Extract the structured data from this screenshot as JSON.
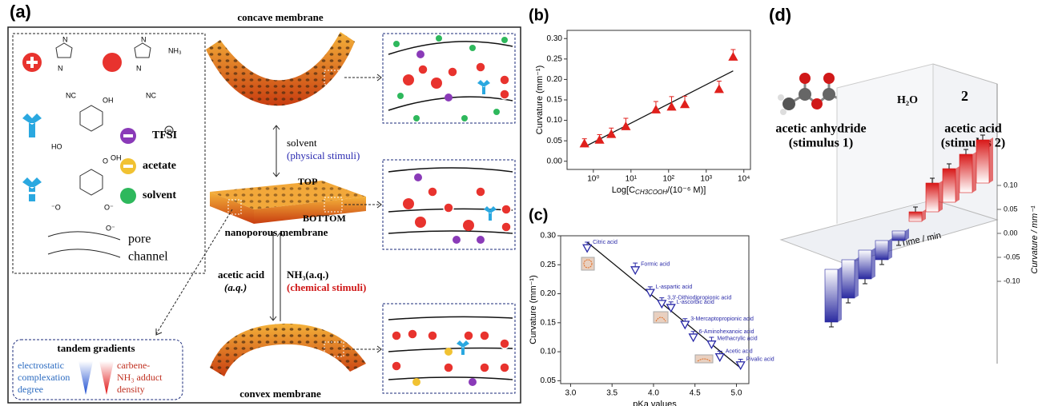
{
  "panel_a": {
    "label": "(a)",
    "legend": {
      "tfsi": "TFSI",
      "acetate": "acetate",
      "solvent": "solvent",
      "pore": "pore",
      "channel": "channel"
    },
    "chem_labels": [
      "N",
      "N",
      "NC",
      "N",
      "N",
      "NH₃",
      "NC",
      "OH",
      "HO",
      "OH",
      "O",
      "O⁻",
      "⁻O",
      "O⁻"
    ],
    "concave": "concave membrane",
    "solvent": "solvent",
    "physical": "(physical stimuli)",
    "top": "TOP",
    "bottom": "BOTTOM",
    "nanoporous": "nanoporous membrane",
    "acetic": "acetic acid",
    "aq": "(a.q.)",
    "nh3": "NH₃(a.q.)",
    "chemical": "(chemical stimuli)",
    "convex": "convex membrane",
    "tandem": "tandem gradients",
    "electro": [
      "electrostatic",
      "complexation",
      "degree"
    ],
    "carbene": [
      "carbene-",
      "NH₃ adduct",
      "density"
    ]
  },
  "panel_d_scheme": {
    "label": "(d)",
    "reactant": "acetic anhydride",
    "stim1": "(stimulus 1)",
    "reagent": "H₂O",
    "coef": "2",
    "product": "acetic acid",
    "stim2": "(stimulus 2)"
  },
  "chart_data": [
    {
      "type": "scatter",
      "panel_label": "(b)",
      "marker": "triangle-up",
      "color": "#e0201c",
      "x_label": [
        "Log[C",
        "CH3COOH",
        "/(10⁻⁶ M)]"
      ],
      "y_label": "Curvature (mm⁻¹)",
      "xscale": "log",
      "xlim": [
        0.2,
        15000
      ],
      "ylim": [
        -0.02,
        0.32
      ],
      "xticks": [
        {
          "value": 1,
          "label": "10⁰"
        },
        {
          "value": 10,
          "label": "10¹"
        },
        {
          "value": 100,
          "label": "10²"
        },
        {
          "value": 1000,
          "label": "10³"
        },
        {
          "value": 10000,
          "label": "10⁴"
        }
      ],
      "yticks": [
        {
          "value": 0,
          "label": "0.00"
        },
        {
          "value": 0.05,
          "label": "0.05"
        },
        {
          "value": 0.1,
          "label": "0.10"
        },
        {
          "value": 0.15,
          "label": "0.15"
        },
        {
          "value": 0.2,
          "label": "0.20"
        },
        {
          "value": 0.25,
          "label": "0.25"
        },
        {
          "value": 0.3,
          "label": "0.30"
        }
      ],
      "x": [
        0.58,
        1.46,
        3.0,
        7.3,
        46,
        120,
        270,
        2200,
        5200
      ],
      "values": [
        0.043,
        0.052,
        0.066,
        0.085,
        0.126,
        0.133,
        0.139,
        0.176,
        0.255
      ],
      "errors": [
        0.012,
        0.013,
        0.015,
        0.02,
        0.02,
        0.025,
        0.02,
        0.02,
        0.018
      ],
      "fit": {
        "x": [
          0.58,
          5200
        ],
        "y": [
          0.035,
          0.221
        ]
      }
    },
    {
      "type": "scatter",
      "panel_label": "(c)",
      "marker": "triangle-down-open",
      "color": "#2a2aa8",
      "x_label": [
        "pKa values"
      ],
      "y_label": "Curvature (mm⁻¹)",
      "xlim": [
        2.88,
        5.15
      ],
      "ylim": [
        0.045,
        0.3
      ],
      "xticks": [
        {
          "value": 3,
          "label": "3.0"
        },
        {
          "value": 3.5,
          "label": "3.5"
        },
        {
          "value": 4,
          "label": "4.0"
        },
        {
          "value": 4.5,
          "label": "4.5"
        },
        {
          "value": 5,
          "label": "5.0"
        }
      ],
      "yticks": [
        0.05,
        {
          "value": 0.1,
          "label": "0.10"
        },
        0.15,
        {
          "value": 0.2,
          "label": "0.20"
        },
        0.25,
        {
          "value": 0.3,
          "label": "0.30"
        }
      ],
      "x": [
        3.2,
        3.78,
        3.96,
        4.1,
        4.21,
        4.38,
        4.48,
        4.7,
        4.8,
        5.05
      ],
      "values": [
        0.279,
        0.241,
        0.202,
        0.183,
        0.176,
        0.147,
        0.125,
        0.113,
        0.091,
        0.077
      ],
      "errors": [
        0.01,
        0.012,
        0.01,
        0.01,
        0.01,
        0.01,
        0.01,
        0.012,
        0.01,
        0.01
      ],
      "point_labels": [
        "Citric acid",
        "Formic acid",
        "L-aspartic acid",
        "3,3'-Dithiodipropionic acid",
        "L-ascorbic acid",
        "3-Mercaptopropionic acid",
        "6-Aminohexanoic acid",
        "Methacrylic acid",
        "Acetic acid",
        "Pivalic acid"
      ],
      "fit": {
        "x": [
          3.2,
          5.05
        ],
        "y": [
          0.289,
          0.072
        ]
      }
    },
    {
      "type": "bar3d",
      "colors": [
        "#2a2aa0",
        "#d81818"
      ],
      "y_label": "Curvature / mm⁻¹",
      "x_label": "Time / min",
      "ylim": [
        -0.15,
        0.15
      ],
      "yticks": [
        {
          "value": -0.1,
          "label": "-0.10"
        },
        {
          "value": -0.05,
          "label": "-0.05"
        },
        {
          "value": 0,
          "label": "0.00"
        },
        {
          "value": 0.05,
          "label": "0.05"
        },
        {
          "value": 0.1,
          "label": "0.10"
        }
      ],
      "values": [
        -0.11,
        -0.08,
        -0.06,
        -0.04,
        -0.02,
        0.02,
        0.06,
        0.07,
        0.08,
        0.09
      ]
    }
  ]
}
